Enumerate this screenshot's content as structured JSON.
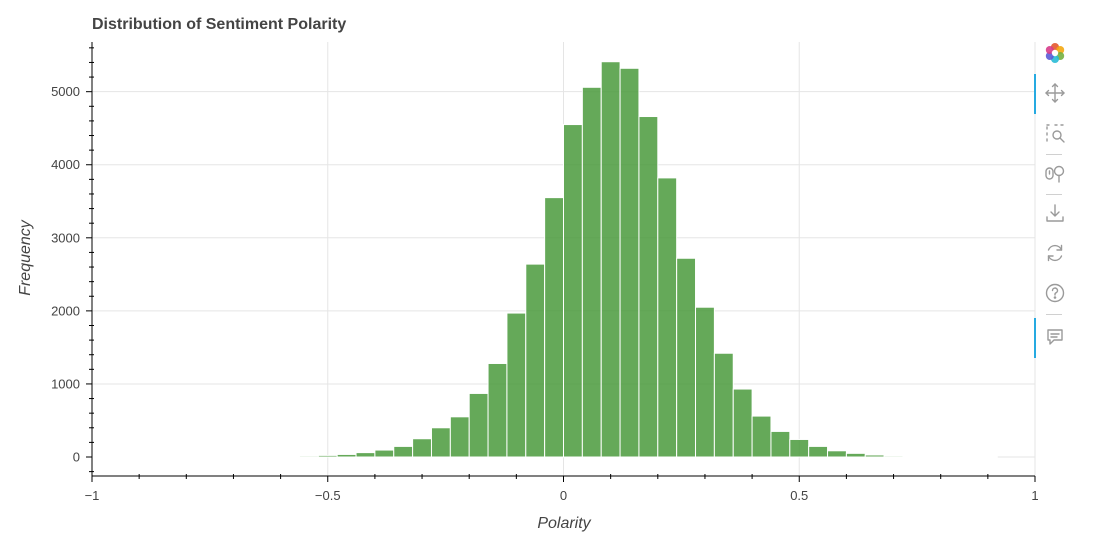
{
  "chart_data": {
    "type": "bar",
    "title": "Distribution of Sentiment Polarity",
    "xlabel": "Polarity",
    "ylabel": "Frequency",
    "xlim": [
      -1,
      1
    ],
    "ylim": [
      -260,
      5680
    ],
    "grid": true,
    "color": "#4a9a3c",
    "bin_width": 0.04,
    "bins": [
      {
        "x0": -1.0,
        "value": 1
      },
      {
        "x0": -0.96,
        "value": 1
      },
      {
        "x0": -0.92,
        "value": 1
      },
      {
        "x0": -0.88,
        "value": 2
      },
      {
        "x0": -0.84,
        "value": 2
      },
      {
        "x0": -0.8,
        "value": 3
      },
      {
        "x0": -0.76,
        "value": 3
      },
      {
        "x0": -0.72,
        "value": 4
      },
      {
        "x0": -0.68,
        "value": 5
      },
      {
        "x0": -0.64,
        "value": 7
      },
      {
        "x0": -0.6,
        "value": 10
      },
      {
        "x0": -0.56,
        "value": 15
      },
      {
        "x0": -0.52,
        "value": 22
      },
      {
        "x0": -0.48,
        "value": 35
      },
      {
        "x0": -0.44,
        "value": 60
      },
      {
        "x0": -0.4,
        "value": 95
      },
      {
        "x0": -0.36,
        "value": 145
      },
      {
        "x0": -0.32,
        "value": 250
      },
      {
        "x0": -0.28,
        "value": 400
      },
      {
        "x0": -0.24,
        "value": 550
      },
      {
        "x0": -0.2,
        "value": 870
      },
      {
        "x0": -0.16,
        "value": 1280
      },
      {
        "x0": -0.12,
        "value": 1970
      },
      {
        "x0": -0.08,
        "value": 2640
      },
      {
        "x0": -0.04,
        "value": 3550
      },
      {
        "x0": 0.0,
        "value": 4550
      },
      {
        "x0": 0.04,
        "value": 5060
      },
      {
        "x0": 0.08,
        "value": 5410
      },
      {
        "x0": 0.12,
        "value": 5320
      },
      {
        "x0": 0.16,
        "value": 4660
      },
      {
        "x0": 0.2,
        "value": 3820
      },
      {
        "x0": 0.24,
        "value": 2720
      },
      {
        "x0": 0.28,
        "value": 2050
      },
      {
        "x0": 0.32,
        "value": 1420
      },
      {
        "x0": 0.36,
        "value": 930
      },
      {
        "x0": 0.4,
        "value": 560
      },
      {
        "x0": 0.44,
        "value": 350
      },
      {
        "x0": 0.48,
        "value": 240
      },
      {
        "x0": 0.52,
        "value": 145
      },
      {
        "x0": 0.56,
        "value": 85
      },
      {
        "x0": 0.6,
        "value": 50
      },
      {
        "x0": 0.64,
        "value": 28
      },
      {
        "x0": 0.68,
        "value": 15
      },
      {
        "x0": 0.72,
        "value": 8
      },
      {
        "x0": 0.76,
        "value": 4
      },
      {
        "x0": 0.8,
        "value": 2
      },
      {
        "x0": 0.84,
        "value": 1
      },
      {
        "x0": 0.88,
        "value": 1
      }
    ],
    "x_ticks": [
      {
        "value": -1,
        "label": "−1"
      },
      {
        "value": -0.5,
        "label": "−0.5"
      },
      {
        "value": 0,
        "label": "0"
      },
      {
        "value": 0.5,
        "label": "0.5"
      },
      {
        "value": 1,
        "label": "1"
      }
    ],
    "y_ticks": [
      {
        "value": 0,
        "label": "0"
      },
      {
        "value": 1000,
        "label": "1000"
      },
      {
        "value": 2000,
        "label": "2000"
      },
      {
        "value": 3000,
        "label": "3000"
      },
      {
        "value": 4000,
        "label": "4000"
      },
      {
        "value": 5000,
        "label": "5000"
      }
    ]
  },
  "toolbar": {
    "tools": [
      {
        "icon": "bokeh-logo-icon",
        "active": false
      },
      {
        "icon": "pan-icon",
        "active": true
      },
      {
        "icon": "box-zoom-icon",
        "active": false
      },
      {
        "icon": "wheel-zoom-icon",
        "active": false
      },
      {
        "icon": "save-icon",
        "active": false
      },
      {
        "icon": "reset-icon",
        "active": false
      },
      {
        "icon": "help-icon",
        "active": false
      },
      {
        "icon": "hover-icon",
        "active": true
      }
    ]
  }
}
